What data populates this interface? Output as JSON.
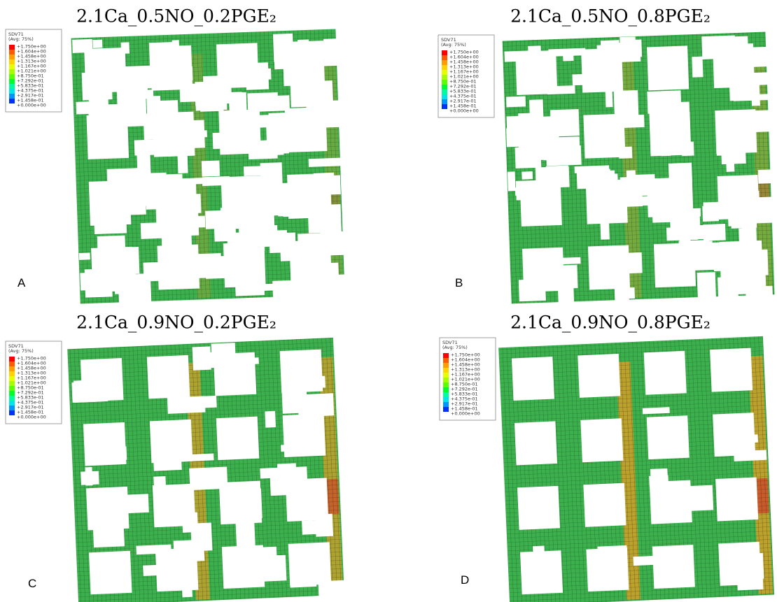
{
  "panels": [
    {
      "title": "2.1Ca_0.5NO_0.2PGE₂",
      "letter": "A"
    },
    {
      "title": "2.1Ca_0.5NO_0.8PGE₂",
      "letter": "B"
    },
    {
      "title": "2.1Ca_0.9NO_0.2PGE₂",
      "letter": "C"
    },
    {
      "title": "2.1Ca_0.9NO_0.8PGE₂",
      "letter": "D"
    }
  ],
  "legend": {
    "variable": "SDV71",
    "averaging": "(Avg: 75%)",
    "labels": [
      "+1.750e+00",
      "+1.604e+00",
      "+1.458e+00",
      "+1.313e+00",
      "+1.167e+00",
      "+1.021e+00",
      "+8.750e-01",
      "+7.292e-01",
      "+5.833e-01",
      "+4.375e-01",
      "+2.917e-01",
      "+1.458e-01",
      "+0.000e+00"
    ]
  }
}
